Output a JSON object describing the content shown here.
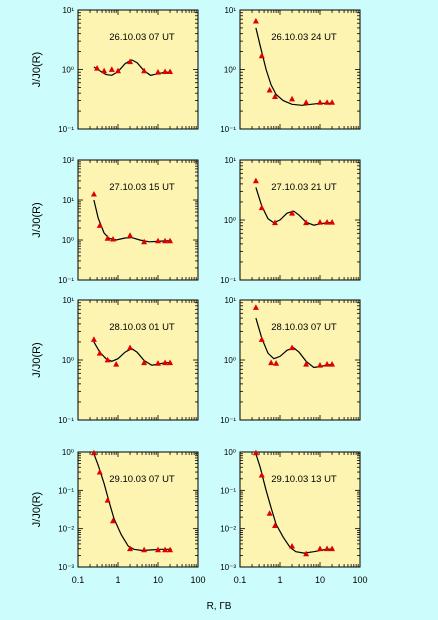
{
  "figure": {
    "background": "#ccfcfc",
    "panel_fill": "#fcf4b0",
    "marker_color": "#e00000",
    "curve_color": "#000000",
    "y_axis_label": "J/J0(R)",
    "x_axis_label": "R, ГВ",
    "x_ticks": [
      "0.1",
      "1",
      "10",
      "100"
    ]
  },
  "chart_data": [
    {
      "type": "scatter",
      "title": "26.10.03   07 UT",
      "xscale": "log",
      "yscale": "log",
      "xlim": [
        0.1,
        100
      ],
      "ylim": [
        0.1,
        10
      ],
      "y_ticks": [
        "10⁻¹",
        "10⁰",
        "10¹"
      ],
      "y_tick_values": [
        0.1,
        1,
        10
      ],
      "points": [
        [
          0.3,
          1.05
        ],
        [
          0.45,
          0.95
        ],
        [
          0.7,
          1.0
        ],
        [
          1.0,
          0.95
        ],
        [
          2.0,
          1.35
        ],
        [
          4.5,
          0.95
        ],
        [
          10,
          0.9
        ],
        [
          15,
          0.92
        ],
        [
          20,
          0.92
        ]
      ],
      "curve": [
        [
          0.25,
          1.1
        ],
        [
          0.35,
          0.95
        ],
        [
          0.5,
          0.82
        ],
        [
          0.7,
          0.8
        ],
        [
          1.0,
          0.92
        ],
        [
          1.5,
          1.25
        ],
        [
          2.2,
          1.45
        ],
        [
          3.0,
          1.3
        ],
        [
          4.5,
          0.95
        ],
        [
          6.5,
          0.8
        ],
        [
          10,
          0.85
        ],
        [
          15,
          0.9
        ],
        [
          22,
          0.9
        ]
      ]
    },
    {
      "type": "scatter",
      "title": "26.10.03   24 UT",
      "xscale": "log",
      "yscale": "log",
      "xlim": [
        0.1,
        100
      ],
      "ylim": [
        0.1,
        10
      ],
      "y_ticks": [
        "10⁻¹",
        "10⁰",
        "10¹"
      ],
      "y_tick_values": [
        0.1,
        1,
        10
      ],
      "points": [
        [
          0.25,
          6.5
        ],
        [
          0.35,
          1.7
        ],
        [
          0.55,
          0.45
        ],
        [
          0.75,
          0.35
        ],
        [
          2.0,
          0.32
        ],
        [
          4.5,
          0.28
        ],
        [
          10,
          0.28
        ],
        [
          15,
          0.28
        ],
        [
          20,
          0.28
        ]
      ],
      "curve": [
        [
          0.25,
          5.0
        ],
        [
          0.32,
          2.5
        ],
        [
          0.45,
          1.0
        ],
        [
          0.6,
          0.55
        ],
        [
          0.8,
          0.38
        ],
        [
          1.2,
          0.3
        ],
        [
          2.0,
          0.26
        ],
        [
          3.5,
          0.25
        ],
        [
          6.0,
          0.26
        ],
        [
          10,
          0.27
        ],
        [
          15,
          0.27
        ],
        [
          22,
          0.27
        ]
      ]
    },
    {
      "type": "scatter",
      "title": "27.10.03   15 UT",
      "xscale": "log",
      "yscale": "log",
      "xlim": [
        0.1,
        100
      ],
      "ylim": [
        0.1,
        100
      ],
      "y_ticks": [
        "10⁻¹",
        "10⁰",
        "10¹",
        "10²"
      ],
      "y_tick_values": [
        0.1,
        1,
        10,
        100
      ],
      "points": [
        [
          0.25,
          14
        ],
        [
          0.35,
          2.3
        ],
        [
          0.55,
          1.1
        ],
        [
          0.75,
          1.05
        ],
        [
          2.0,
          1.3
        ],
        [
          4.5,
          0.9
        ],
        [
          10,
          0.95
        ],
        [
          15,
          0.95
        ],
        [
          20,
          0.95
        ]
      ],
      "curve": [
        [
          0.25,
          10
        ],
        [
          0.32,
          3.5
        ],
        [
          0.45,
          1.5
        ],
        [
          0.6,
          1.1
        ],
        [
          0.9,
          1.0
        ],
        [
          1.5,
          1.12
        ],
        [
          2.2,
          1.15
        ],
        [
          3.5,
          1.0
        ],
        [
          6.0,
          0.9
        ],
        [
          10,
          0.92
        ],
        [
          15,
          0.95
        ],
        [
          22,
          0.95
        ]
      ]
    },
    {
      "type": "scatter",
      "title": "27.10.03   21 UT",
      "xscale": "log",
      "yscale": "log",
      "xlim": [
        0.1,
        100
      ],
      "ylim": [
        0.1,
        10
      ],
      "y_ticks": [
        "10⁻¹",
        "10⁰",
        "10¹"
      ],
      "y_tick_values": [
        0.1,
        1,
        10
      ],
      "points": [
        [
          0.25,
          4.5
        ],
        [
          0.35,
          1.6
        ],
        [
          0.75,
          0.9
        ],
        [
          2.0,
          1.3
        ],
        [
          4.5,
          0.9
        ],
        [
          10,
          0.92
        ],
        [
          15,
          0.92
        ],
        [
          20,
          0.92
        ]
      ],
      "curve": [
        [
          0.25,
          3.5
        ],
        [
          0.35,
          1.7
        ],
        [
          0.5,
          1.05
        ],
        [
          0.7,
          0.9
        ],
        [
          1.0,
          1.0
        ],
        [
          1.5,
          1.3
        ],
        [
          2.2,
          1.4
        ],
        [
          3.0,
          1.2
        ],
        [
          4.5,
          0.92
        ],
        [
          7,
          0.82
        ],
        [
          10,
          0.86
        ],
        [
          15,
          0.9
        ],
        [
          22,
          0.9
        ]
      ]
    },
    {
      "type": "scatter",
      "title": "28.10.03   01 UT",
      "xscale": "log",
      "yscale": "log",
      "xlim": [
        0.1,
        100
      ],
      "ylim": [
        0.1,
        10
      ],
      "y_ticks": [
        "10⁻¹",
        "10⁰",
        "10¹"
      ],
      "y_tick_values": [
        0.1,
        1,
        10
      ],
      "points": [
        [
          0.25,
          2.2
        ],
        [
          0.35,
          1.3
        ],
        [
          0.55,
          1.0
        ],
        [
          0.9,
          0.85
        ],
        [
          2.0,
          1.6
        ],
        [
          4.5,
          0.9
        ],
        [
          10,
          0.88
        ],
        [
          15,
          0.9
        ],
        [
          20,
          0.9
        ]
      ],
      "curve": [
        [
          0.25,
          2.0
        ],
        [
          0.35,
          1.35
        ],
        [
          0.5,
          1.05
        ],
        [
          0.7,
          0.95
        ],
        [
          1.0,
          1.05
        ],
        [
          1.5,
          1.35
        ],
        [
          2.2,
          1.55
        ],
        [
          3.0,
          1.35
        ],
        [
          4.5,
          0.98
        ],
        [
          7,
          0.82
        ],
        [
          10,
          0.85
        ],
        [
          15,
          0.9
        ],
        [
          22,
          0.9
        ]
      ]
    },
    {
      "type": "scatter",
      "title": "28.10.03   07 UT",
      "xscale": "log",
      "yscale": "log",
      "xlim": [
        0.1,
        100
      ],
      "ylim": [
        0.1,
        10
      ],
      "y_ticks": [
        "10⁻¹",
        "10⁰",
        "10¹"
      ],
      "y_tick_values": [
        0.1,
        1,
        10
      ],
      "points": [
        [
          0.25,
          7.5
        ],
        [
          0.35,
          2.2
        ],
        [
          0.6,
          0.9
        ],
        [
          0.8,
          0.88
        ],
        [
          2.0,
          1.6
        ],
        [
          4.5,
          0.85
        ],
        [
          10,
          0.82
        ],
        [
          15,
          0.85
        ],
        [
          20,
          0.85
        ]
      ],
      "curve": [
        [
          0.25,
          5.0
        ],
        [
          0.35,
          2.3
        ],
        [
          0.5,
          1.3
        ],
        [
          0.7,
          1.05
        ],
        [
          1.0,
          1.15
        ],
        [
          1.5,
          1.45
        ],
        [
          2.2,
          1.6
        ],
        [
          3.0,
          1.35
        ],
        [
          4.5,
          0.95
        ],
        [
          7,
          0.75
        ],
        [
          10,
          0.78
        ],
        [
          15,
          0.82
        ],
        [
          22,
          0.85
        ]
      ]
    },
    {
      "type": "scatter",
      "title": "29.10.03   07 UT",
      "xscale": "log",
      "yscale": "log",
      "xlim": [
        0.1,
        100
      ],
      "ylim": [
        0.001,
        1
      ],
      "y_ticks": [
        "10⁻³",
        "10⁻²",
        "10⁻¹",
        "10⁰"
      ],
      "y_tick_values": [
        0.001,
        0.01,
        0.1,
        1
      ],
      "points": [
        [
          0.25,
          0.95
        ],
        [
          0.35,
          0.3
        ],
        [
          0.55,
          0.055
        ],
        [
          0.75,
          0.016
        ],
        [
          2.0,
          0.003
        ],
        [
          4.5,
          0.0028
        ],
        [
          10,
          0.0028
        ],
        [
          15,
          0.0028
        ],
        [
          20,
          0.0028
        ]
      ],
      "curve": [
        [
          0.25,
          0.9
        ],
        [
          0.32,
          0.45
        ],
        [
          0.45,
          0.15
        ],
        [
          0.6,
          0.05
        ],
        [
          0.8,
          0.018
        ],
        [
          1.2,
          0.007
        ],
        [
          1.8,
          0.0035
        ],
        [
          2.5,
          0.0029
        ],
        [
          4,
          0.0027
        ],
        [
          7,
          0.0028
        ],
        [
          12,
          0.0029
        ],
        [
          22,
          0.0029
        ]
      ]
    },
    {
      "type": "scatter",
      "title": "29.10.03   13 UT",
      "xscale": "log",
      "yscale": "log",
      "xlim": [
        0.1,
        100
      ],
      "ylim": [
        0.001,
        1
      ],
      "y_ticks": [
        "10⁻³",
        "10⁻²",
        "10⁻¹",
        "10⁰"
      ],
      "y_tick_values": [
        0.001,
        0.01,
        0.1,
        1
      ],
      "points": [
        [
          0.25,
          0.95
        ],
        [
          0.35,
          0.25
        ],
        [
          0.55,
          0.025
        ],
        [
          0.75,
          0.012
        ],
        [
          2.0,
          0.0035
        ],
        [
          4.5,
          0.0022
        ],
        [
          10,
          0.003
        ],
        [
          15,
          0.003
        ],
        [
          20,
          0.003
        ]
      ],
      "curve": [
        [
          0.25,
          0.9
        ],
        [
          0.32,
          0.4
        ],
        [
          0.45,
          0.1
        ],
        [
          0.6,
          0.035
        ],
        [
          0.8,
          0.013
        ],
        [
          1.2,
          0.006
        ],
        [
          1.8,
          0.0032
        ],
        [
          2.5,
          0.0025
        ],
        [
          4,
          0.0023
        ],
        [
          7,
          0.0025
        ],
        [
          12,
          0.0028
        ],
        [
          22,
          0.003
        ]
      ]
    }
  ]
}
